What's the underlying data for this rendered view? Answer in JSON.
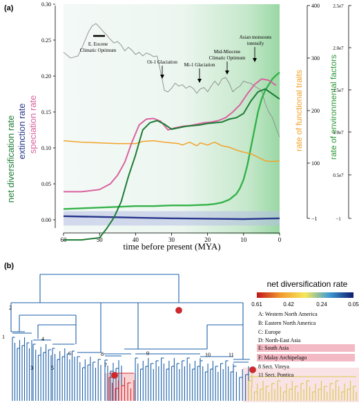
{
  "panel_a_label": "(a)",
  "panel_b_label": "(b)",
  "chart_data": {
    "type": "line",
    "xlabel": "time before present (MYA)",
    "x_ticks": [
      "60",
      "50",
      "40",
      "30",
      "20",
      "10",
      "0"
    ],
    "xlim": [
      60,
      0
    ],
    "ylim": [
      -0.01,
      0.3
    ],
    "y_ticks": [
      "0.00",
      "0.05",
      "0.10",
      "0.15",
      "0.20",
      "0.25",
      "0.30"
    ],
    "ylabels": {
      "net": "net diversification rate",
      "extinction": "extinction rate",
      "speciation": "speciation rate"
    },
    "right_axis_1": {
      "label": "rate of functional traits",
      "ticks": [
        "400",
        "300",
        "200",
        "100",
        "−1"
      ],
      "color": "#f2a229"
    },
    "right_axis_2": {
      "label": "rate of environmental factors",
      "ticks": [
        "2.5e7",
        "2.0e7",
        "1.5e7",
        "1.0e7",
        "0.5e7",
        "−1"
      ],
      "color": "#2e9a3a"
    },
    "annotations": [
      "E. Eocene Climatic Optimum",
      "Oi-1 Glaciation",
      "Mi-1 Glaciation",
      "Mid-Miocene Climatic Optimum",
      "Asian monsoons intensify"
    ],
    "series": [
      {
        "key": "speciation",
        "color": "#d9629e",
        "x": [
          60,
          55,
          50,
          47,
          45,
          43,
          41,
          39,
          37,
          35,
          33,
          31,
          29,
          27,
          25,
          23,
          21,
          19,
          17,
          15,
          13,
          11,
          9,
          7,
          5,
          3,
          1
        ],
        "values": [
          0.039,
          0.039,
          0.042,
          0.05,
          0.062,
          0.08,
          0.108,
          0.132,
          0.14,
          0.141,
          0.137,
          0.125,
          0.128,
          0.13,
          0.131,
          0.133,
          0.135,
          0.136,
          0.138,
          0.142,
          0.15,
          0.16,
          0.175,
          0.188,
          0.196,
          0.194,
          0.187
        ]
      },
      {
        "key": "net",
        "color": "#1c7b34",
        "x": [
          60,
          55,
          50,
          48,
          46,
          44,
          42,
          40,
          39,
          38,
          36,
          34,
          32,
          30,
          28,
          26,
          24,
          22,
          20,
          18,
          16,
          14,
          12,
          10,
          8,
          6,
          4,
          2,
          0
        ],
        "values": [
          -0.04,
          -0.035,
          -0.025,
          -0.012,
          0.003,
          0.025,
          0.06,
          0.09,
          0.108,
          0.125,
          0.135,
          0.138,
          0.133,
          0.126,
          0.128,
          0.13,
          0.131,
          0.132,
          0.134,
          0.135,
          0.136,
          0.14,
          0.142,
          0.148,
          0.165,
          0.178,
          0.182,
          0.175,
          0.168
        ]
      },
      {
        "key": "net_mean",
        "color": "#33b24a",
        "x": [
          60,
          55,
          50,
          45,
          40,
          35,
          30,
          25,
          20,
          18,
          16,
          14,
          12,
          11,
          10,
          9,
          8,
          7,
          6,
          5,
          4,
          3,
          2,
          1,
          0
        ],
        "values": [
          0.015,
          0.016,
          0.017,
          0.018,
          0.019,
          0.019,
          0.02,
          0.02,
          0.021,
          0.022,
          0.024,
          0.028,
          0.036,
          0.044,
          0.056,
          0.075,
          0.1,
          0.125,
          0.15,
          0.168,
          0.18,
          0.188,
          0.196,
          0.201,
          0.205
        ]
      },
      {
        "key": "extinction",
        "color": "#27348b",
        "x": [
          60,
          50,
          40,
          30,
          20,
          10,
          5,
          0
        ],
        "values": [
          0.005,
          0.004,
          0.003,
          0.002,
          0.0015,
          0.001,
          0.0015,
          0.002
        ]
      },
      {
        "key": "functional_traits",
        "color": "#f2a229",
        "x": [
          60,
          55,
          50,
          45,
          40,
          38,
          35,
          32,
          30,
          28,
          27,
          25,
          23,
          22,
          20,
          18,
          16,
          14,
          12,
          10,
          8,
          6,
          4,
          2,
          0
        ],
        "values": [
          0.11,
          0.108,
          0.107,
          0.106,
          0.106,
          0.109,
          0.11,
          0.108,
          0.107,
          0.106,
          0.104,
          0.108,
          0.103,
          0.107,
          0.104,
          0.108,
          0.103,
          0.101,
          0.097,
          0.094,
          0.092,
          0.087,
          0.082,
          0.081,
          0.082
        ]
      },
      {
        "key": "temperature",
        "color": "#8a8a8a",
        "x": [
          60,
          58,
          56,
          55,
          54,
          53,
          52,
          51,
          50,
          49,
          48,
          47,
          46,
          45,
          44,
          43,
          42,
          41,
          40,
          39,
          38,
          37,
          36,
          35,
          34,
          33,
          32,
          31,
          30,
          29,
          28,
          27,
          26,
          25,
          24,
          23,
          22,
          21,
          20,
          19,
          18,
          17,
          16,
          15,
          14,
          13,
          12,
          11,
          10,
          9,
          8,
          7,
          6,
          5,
          4,
          3,
          2,
          1,
          0
        ],
        "values": [
          0.233,
          0.225,
          0.228,
          0.238,
          0.25,
          0.262,
          0.27,
          0.273,
          0.268,
          0.262,
          0.257,
          0.251,
          0.246,
          0.248,
          0.243,
          0.235,
          0.24,
          0.236,
          0.23,
          0.233,
          0.228,
          0.232,
          0.23,
          0.227,
          0.228,
          0.205,
          0.18,
          0.178,
          0.183,
          0.19,
          0.186,
          0.188,
          0.183,
          0.186,
          0.183,
          0.176,
          0.182,
          0.184,
          0.178,
          0.186,
          0.193,
          0.187,
          0.196,
          0.198,
          0.19,
          0.178,
          0.183,
          0.186,
          0.193,
          0.191,
          0.19,
          0.186,
          0.183,
          0.18,
          0.162,
          0.15,
          0.142,
          0.128,
          0.115
        ]
      }
    ],
    "legend_b": {
      "title": "net diversification rate",
      "ticks": [
        "0.61",
        "0.42",
        "0.24",
        "0.05"
      ],
      "regions": [
        "A: Western North America",
        "B: Eastern North America",
        "C: Europe",
        "D: North-East Asia",
        "E: South Asia",
        "F: Malay Archipelago",
        "8  Sect. Vireya",
        "11 Sect. Pontica"
      ],
      "clade_numbers": [
        "1",
        "2",
        "3",
        "4",
        "5",
        "6",
        "7",
        "8",
        "9",
        "10",
        "11"
      ]
    }
  }
}
